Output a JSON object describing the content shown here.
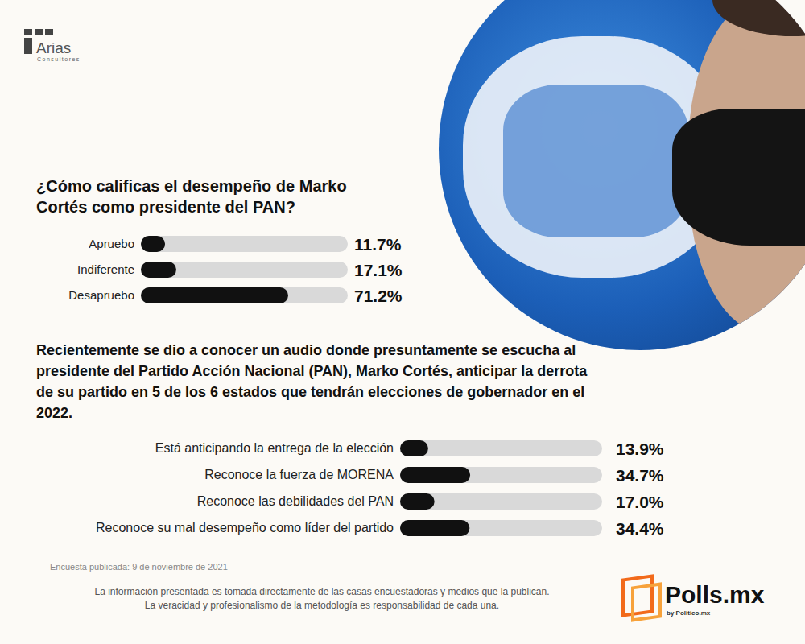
{
  "brand": {
    "name": "Arias",
    "subtitle": "Consultores"
  },
  "chart_data": [
    {
      "type": "bar",
      "orientation": "horizontal",
      "title": "¿Cómo calificas el desempeño de Marko Cortés como presidente del PAN?",
      "categories": [
        "Apruebo",
        "Indiferente",
        "Desapruebo"
      ],
      "values": [
        11.7,
        17.1,
        71.2
      ],
      "value_labels": [
        "11.7%",
        "17.1%",
        "71.2%"
      ],
      "color": "#111111",
      "xlim": [
        0,
        100
      ],
      "data_labels": true,
      "tick_labels": "y",
      "grid": false
    },
    {
      "type": "bar",
      "orientation": "horizontal",
      "title": "Recientemente se dio a conocer un audio donde presuntamente se escucha al presidente del Partido Acción Nacional (PAN), Marko Cortés, anticipar la derrota de su partido en 5 de los 6 estados que tendrán elecciones de gobernador en el 2022.",
      "categories": [
        "Está anticipando la entrega de la elección",
        "Reconoce la fuerza de MORENA",
        "Reconoce las debilidades del PAN",
        "Reconoce su mal desempeño como líder del partido"
      ],
      "values": [
        13.9,
        34.7,
        17.0,
        34.4
      ],
      "value_labels": [
        "13.9%",
        "34.7%",
        "17.0%",
        "34.4%"
      ],
      "color": "#111111",
      "xlim": [
        0,
        100
      ],
      "data_labels": true,
      "tick_labels": "y",
      "grid": false
    }
  ],
  "published": "Encuesta publicada: 9 de noviembre de 2021",
  "disclaimer": [
    "La información presentada es tomada directamente de las casas encuestadoras y medios que la publican.",
    "La veracidad y profesionalismo de la metodología es responsabilidad de cada una."
  ],
  "publisher": {
    "name": "Polls.mx",
    "subtitle": "by Politico.mx"
  }
}
